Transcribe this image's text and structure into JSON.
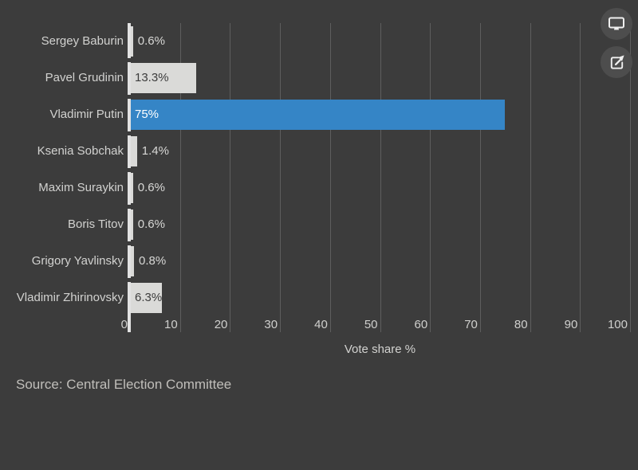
{
  "chart_data": {
    "type": "bar",
    "orientation": "horizontal",
    "categories": [
      "Sergey Baburin",
      "Pavel Grudinin",
      "Vladimir Putin",
      "Ksenia Sobchak",
      "Maxim Suraykin",
      "Boris Titov",
      "Grigory Yavlinsky",
      "Vladimir Zhirinovsky"
    ],
    "values": [
      0.6,
      13.3,
      75,
      1.4,
      0.6,
      0.6,
      0.8,
      6.3
    ],
    "value_labels": [
      "0.6%",
      "13.3%",
      "75%",
      "1.4%",
      "0.6%",
      "0.6%",
      "0.8%",
      "6.3%"
    ],
    "highlight_index": 2,
    "xlabel": "Vote share %",
    "xlim": [
      0,
      100
    ],
    "xticks": [
      0,
      10,
      20,
      30,
      40,
      50,
      60,
      70,
      80,
      90,
      100
    ],
    "grid": true,
    "legend": "none",
    "colors": {
      "background": "#3c3c3c",
      "bar": "#dadad8",
      "bar_highlight": "#3585c6",
      "gridline": "#5e5e5e",
      "axis_line": "#e2e2e2",
      "label_text": "#d2d2d0",
      "value_text_outside": "#d8d8d6",
      "value_text_inside": "#3c3c3c",
      "value_text_highlight": "#ffffff"
    }
  },
  "toolbar": {
    "buttons": [
      {
        "name": "fullscreen",
        "icon": "monitor-icon"
      },
      {
        "name": "share",
        "icon": "share-icon"
      }
    ]
  },
  "footer": {
    "source": "Source: Central Election Committee"
  }
}
